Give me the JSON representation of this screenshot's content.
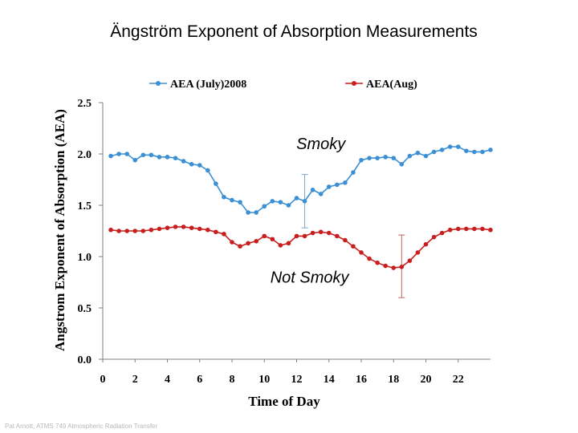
{
  "page": {
    "title": "Ängström Exponent of Absorption Measurements",
    "footer": "Pat Arnott, ATMS 749 Atmospheric Radiation Transfer"
  },
  "chart_data": {
    "type": "line",
    "title": "",
    "xlabel": "Time of Day",
    "ylabel": "Angstrom Exponent of Absorption (AEA)",
    "xlim": [
      0,
      24
    ],
    "ylim": [
      0,
      2.5
    ],
    "x_ticks": [
      "0",
      "2",
      "4",
      "6",
      "8",
      "10",
      "12",
      "14",
      "16",
      "18",
      "20",
      "22"
    ],
    "y_ticks": [
      "0.0",
      "0.5",
      "1.0",
      "1.5",
      "2.0",
      "2.5"
    ],
    "legend_position": "top",
    "x": [
      0.5,
      1.0,
      1.5,
      2.0,
      2.5,
      3.0,
      3.5,
      4.0,
      4.5,
      5.0,
      5.5,
      6.0,
      6.5,
      7.0,
      7.5,
      8.0,
      8.5,
      9.0,
      9.5,
      10.0,
      10.5,
      11.0,
      11.5,
      12.0,
      12.5,
      13.0,
      13.5,
      14.0,
      14.5,
      15.0,
      15.5,
      16.0,
      16.5,
      17.0,
      17.5,
      18.0,
      18.5,
      19.0,
      19.5,
      20.0,
      20.5,
      21.0,
      21.5,
      22.0,
      22.5,
      23.0,
      23.5,
      24.0
    ],
    "series": [
      {
        "name": "AEA (July)2008",
        "color": "#3b8fd4",
        "values": [
          1.98,
          2.0,
          2.0,
          1.94,
          1.99,
          1.99,
          1.97,
          1.97,
          1.96,
          1.93,
          1.9,
          1.89,
          1.84,
          1.71,
          1.58,
          1.55,
          1.53,
          1.43,
          1.43,
          1.49,
          1.54,
          1.53,
          1.5,
          1.57,
          1.54,
          1.65,
          1.61,
          1.68,
          1.7,
          1.72,
          1.82,
          1.94,
          1.96,
          1.96,
          1.97,
          1.96,
          1.9,
          1.98,
          2.01,
          1.98,
          2.02,
          2.04,
          2.07,
          2.07,
          2.03,
          2.02,
          2.02,
          2.04
        ],
        "error_bars": [
          {
            "x": 12.5,
            "low": 1.28,
            "high": 1.8
          }
        ]
      },
      {
        "name": "AEA(Aug)",
        "color": "#c81e1e",
        "values": [
          1.26,
          1.25,
          1.25,
          1.25,
          1.25,
          1.26,
          1.27,
          1.28,
          1.29,
          1.29,
          1.28,
          1.27,
          1.26,
          1.24,
          1.22,
          1.14,
          1.1,
          1.13,
          1.15,
          1.2,
          1.17,
          1.11,
          1.13,
          1.2,
          1.2,
          1.23,
          1.24,
          1.23,
          1.2,
          1.16,
          1.1,
          1.04,
          0.98,
          0.94,
          0.91,
          0.89,
          0.9,
          0.96,
          1.04,
          1.12,
          1.19,
          1.23,
          1.26,
          1.27,
          1.27,
          1.27,
          1.27,
          1.26
        ],
        "error_bars": [
          {
            "x": 18.5,
            "low": 0.6,
            "high": 1.21
          }
        ]
      }
    ],
    "annotations": [
      {
        "text": "Smoky",
        "x": 13.5,
        "y": 2.1
      },
      {
        "text": "Not Smoky",
        "x": 12.8,
        "y": 0.8
      }
    ],
    "grid": false
  }
}
